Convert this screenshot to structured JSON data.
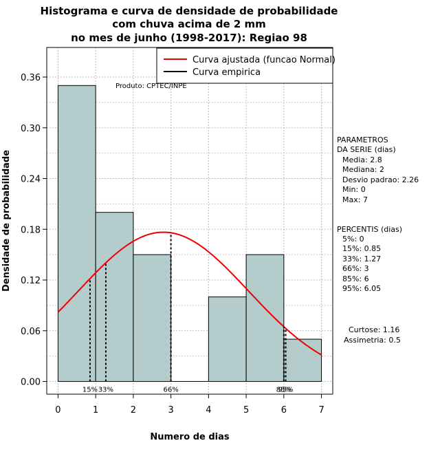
{
  "chart_data": {
    "type": "bar",
    "title_lines": [
      "Histograma e curva de densidade de probabilidade",
      "com chuva acima de 2 mm",
      "no mes de junho (1998-2017): Regiao 98"
    ],
    "xlabel": "Numero de dias",
    "ylabel": "Densidade de probabilidade",
    "xlim": [
      -0.3,
      7.3
    ],
    "ylim": [
      -0.015,
      0.395
    ],
    "x_ticks": [
      0,
      1,
      2,
      3,
      4,
      5,
      6,
      7
    ],
    "y_ticks": [
      0.0,
      0.06,
      0.12,
      0.18,
      0.24,
      0.3,
      0.36
    ],
    "y_tick_labels": [
      "0.00",
      "0.06",
      "0.12",
      "0.18",
      "0.24",
      "0.30",
      "0.36"
    ],
    "bins": [
      {
        "from": 0,
        "to": 1,
        "density": 0.35
      },
      {
        "from": 1,
        "to": 2,
        "density": 0.2
      },
      {
        "from": 2,
        "to": 3,
        "density": 0.15
      },
      {
        "from": 3,
        "to": 4,
        "density": 0.0
      },
      {
        "from": 4,
        "to": 5,
        "density": 0.1
      },
      {
        "from": 5,
        "to": 6,
        "density": 0.15
      },
      {
        "from": 6,
        "to": 7,
        "density": 0.05
      }
    ],
    "normal_fit": {
      "mean": 2.8,
      "sd": 2.26,
      "x_from": 0,
      "x_to": 7
    },
    "percentile_lines": [
      {
        "label": "15%",
        "x": 0.85
      },
      {
        "label": "33%",
        "x": 1.27
      },
      {
        "label": "66%",
        "x": 3
      },
      {
        "label": "85%",
        "x": 6
      },
      {
        "label": "95%",
        "x": 6.05
      }
    ],
    "bar_color": "#b4cccc",
    "curve_color": "#ee0000",
    "legend": {
      "position": "top-right",
      "entries": [
        {
          "label": "Curva ajustada (funcao Normal)",
          "color": "#ee0000"
        },
        {
          "label": "Curva empirica",
          "color": "#000000"
        }
      ]
    },
    "annotation": "Produto: CPTEC/INPE",
    "side_parameters": {
      "heading": [
        "PARAMETROS",
        "DA SERIE (dias)"
      ],
      "items": [
        "Media: 2.8",
        "Mediana: 2",
        "Desvio padrao: 2.26",
        "Min: 0",
        "Max: 7"
      ]
    },
    "side_percentiles": {
      "heading": "PERCENTIS (dias)",
      "items": [
        "5%: 0",
        "15%: 0.85",
        "33%: 1.27",
        "66%: 3",
        "85%: 6",
        "95%: 6.05"
      ]
    },
    "side_shape": [
      "Curtose: 1.16",
      "Assimetria: 0.5"
    ]
  }
}
